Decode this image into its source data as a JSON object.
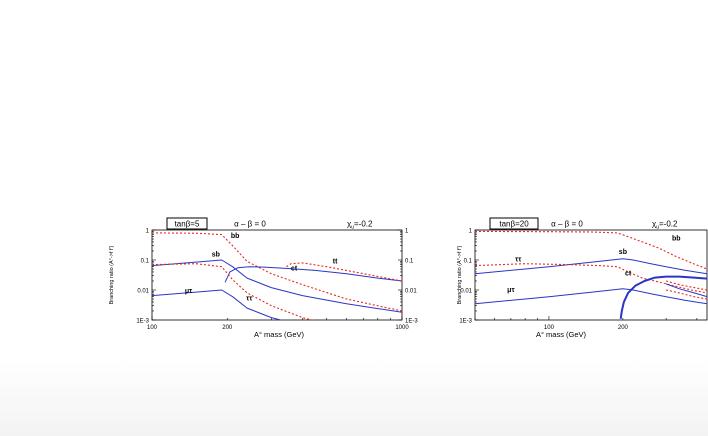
{
  "chart_data": [
    {
      "type": "line",
      "header": {
        "tag": "tanβ=5",
        "alpha_beta": "α – β = 0",
        "chi": "χ",
        "chi_sub": "u",
        "chi_val": "=-0.2"
      },
      "xlabel": "A° mass (GeV)",
      "ylabel": "Branching ratio (A°->f f')",
      "xscale": "log",
      "yscale": "log",
      "xlim": [
        100,
        1000
      ],
      "ylim": [
        0.001,
        1
      ],
      "xticks": [
        {
          "v": 100,
          "label": "100"
        },
        {
          "v": 200,
          "label": "200"
        },
        {
          "v": 1000,
          "label": "1000"
        }
      ],
      "yticks": [
        {
          "v": 1,
          "label": "1"
        },
        {
          "v": 0.1,
          "label": "0.1"
        },
        {
          "v": 0.01,
          "label": "0.01"
        },
        {
          "v": 0.001,
          "label": "1E-3"
        }
      ],
      "right_ticks": true,
      "series": [
        {
          "name": "bb",
          "style": "dotted",
          "color": "#e8281e",
          "x": [
            100,
            150,
            190,
            210,
            240,
            300,
            400,
            600,
            1000
          ],
          "y": [
            0.8,
            0.78,
            0.7,
            0.3,
            0.09,
            0.035,
            0.015,
            0.005,
            0.002
          ]
        },
        {
          "name": "sb",
          "style": "solid",
          "color": "#2a35c8",
          "x": [
            100,
            150,
            190,
            210,
            240,
            300,
            400,
            600,
            1000
          ],
          "y": [
            0.065,
            0.085,
            0.1,
            0.06,
            0.025,
            0.012,
            0.0065,
            0.0035,
            0.0018
          ]
        },
        {
          "name": "ct",
          "style": "solid",
          "color": "#2a35c8",
          "x": [
            196,
            205,
            220,
            245,
            280,
            350,
            450,
            600,
            800,
            1000
          ],
          "y": [
            0.018,
            0.04,
            0.055,
            0.06,
            0.058,
            0.052,
            0.045,
            0.035,
            0.025,
            0.02
          ]
        },
        {
          "name": "tt",
          "style": "dotted",
          "color": "#e8281e",
          "x": [
            345,
            360,
            400,
            500,
            700,
            1000
          ],
          "y": [
            0.06,
            0.075,
            0.08,
            0.06,
            0.035,
            0.02
          ]
        },
        {
          "name": "μτ",
          "style": "solid",
          "color": "#2a35c8",
          "x": [
            100,
            150,
            190,
            210,
            240,
            300,
            400,
            600,
            1000
          ],
          "y": [
            0.0065,
            0.0085,
            0.01,
            0.006,
            0.0025,
            0.0012,
            0.00065,
            0.00035,
            0.00018
          ]
        },
        {
          "name": "ττ",
          "style": "dotted",
          "color": "#e8281e",
          "x": [
            100,
            150,
            190,
            210,
            240,
            300,
            400,
            600,
            1000
          ],
          "y": [
            0.07,
            0.075,
            0.06,
            0.022,
            0.008,
            0.003,
            0.0012,
            0.0005,
            0.0002
          ]
        }
      ],
      "labels": [
        {
          "text": "bb",
          "x": 215,
          "y": 0.55
        },
        {
          "text": "sb",
          "x": 180,
          "y": 0.13
        },
        {
          "text": "ct",
          "x": 370,
          "y": 0.045
        },
        {
          "text": "tt",
          "x": 540,
          "y": 0.075
        },
        {
          "text": "μτ",
          "x": 140,
          "y": 0.008
        },
        {
          "text": "ττ",
          "x": 245,
          "y": 0.0045
        }
      ]
    },
    {
      "type": "line",
      "header": {
        "tag": "tanβ=20",
        "alpha_beta": "α – β = 0",
        "chi": "χ",
        "chi_sub": "u",
        "chi_val": "=-0.2"
      },
      "xlabel": "A° mass (GeV)",
      "ylabel": "Branching ratio (A°->f f')",
      "xscale": "log",
      "yscale": "log",
      "xlim": [
        50,
        440
      ],
      "ylim": [
        0.001,
        1
      ],
      "xticks": [
        {
          "v": 100,
          "label": "100"
        },
        {
          "v": 200,
          "label": "200"
        }
      ],
      "yticks": [
        {
          "v": 1,
          "label": "1"
        },
        {
          "v": 0.1,
          "label": "0.1"
        },
        {
          "v": 0.01,
          "label": "0.01"
        },
        {
          "v": 0.001,
          "label": "1E-3"
        }
      ],
      "right_ticks": false,
      "series": [
        {
          "name": "bb",
          "style": "dotted",
          "color": "#e8281e",
          "x": [
            50,
            100,
            150,
            190,
            210,
            240,
            280,
            330,
            380,
            440
          ],
          "y": [
            0.9,
            0.88,
            0.86,
            0.8,
            0.6,
            0.4,
            0.25,
            0.13,
            0.08,
            0.05
          ]
        },
        {
          "name": "sb",
          "style": "solid",
          "color": "#2a35c8",
          "x": [
            50,
            100,
            150,
            200,
            220,
            260,
            300,
            360,
            440
          ],
          "y": [
            0.035,
            0.06,
            0.085,
            0.11,
            0.1,
            0.075,
            0.06,
            0.045,
            0.035
          ]
        },
        {
          "name": "ττ",
          "style": "dotted",
          "color": "#e8281e",
          "x": [
            50,
            80,
            120,
            160,
            190,
            210,
            240,
            270,
            320,
            380,
            440
          ],
          "y": [
            0.065,
            0.075,
            0.07,
            0.065,
            0.06,
            0.04,
            0.025,
            0.02,
            0.014,
            0.01,
            0.008
          ]
        },
        {
          "name": "μτ",
          "style": "solid",
          "color": "#2a35c8",
          "x": [
            50,
            100,
            150,
            200,
            220,
            260,
            300,
            360,
            440
          ],
          "y": [
            0.0035,
            0.006,
            0.0085,
            0.011,
            0.01,
            0.0075,
            0.006,
            0.0045,
            0.0035
          ]
        },
        {
          "name": "ct",
          "style": "solid",
          "color": "#2a35c8",
          "width": 2,
          "x": [
            196,
            198,
            202,
            210,
            225,
            245,
            270,
            300,
            340,
            390,
            440
          ],
          "y": [
            0.0011,
            0.002,
            0.004,
            0.008,
            0.014,
            0.02,
            0.026,
            0.028,
            0.028,
            0.026,
            0.024
          ]
        },
        {
          "name": "",
          "style": "dotted",
          "color": "#e8281e",
          "x": [
            300,
            340,
            390,
            440
          ],
          "y": [
            0.02,
            0.015,
            0.012,
            0.01
          ]
        },
        {
          "name": "",
          "style": "dotted",
          "color": "#e8281e",
          "x": [
            300,
            340,
            390,
            440
          ],
          "y": [
            0.01,
            0.008,
            0.006,
            0.005
          ]
        },
        {
          "name": "",
          "style": "solid",
          "color": "#2a35c8",
          "x": [
            300,
            340,
            390,
            440
          ],
          "y": [
            0.016,
            0.011,
            0.008,
            0.006
          ]
        }
      ],
      "labels": [
        {
          "text": "bb",
          "x": 330,
          "y": 0.45
        },
        {
          "text": "sb",
          "x": 200,
          "y": 0.16
        },
        {
          "text": "ττ",
          "x": 75,
          "y": 0.09
        },
        {
          "text": "ct",
          "x": 210,
          "y": 0.03
        },
        {
          "text": "μτ",
          "x": 70,
          "y": 0.0085
        }
      ]
    }
  ]
}
